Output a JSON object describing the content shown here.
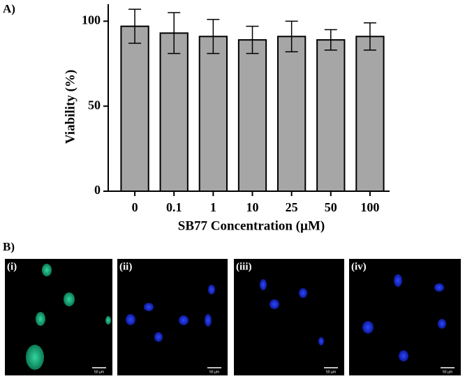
{
  "chart_data": {
    "type": "bar",
    "panel_label": "A)",
    "y_label": "Viability (%)",
    "x_label": "SB77 Concentration (µM)",
    "categories": [
      "0",
      "0.1",
      "1",
      "10",
      "25",
      "50",
      "100"
    ],
    "values": [
      97,
      93,
      91,
      89,
      91,
      89,
      91
    ],
    "errors": [
      10,
      12,
      10,
      8,
      9,
      6,
      8
    ],
    "color": "#a6a6a6",
    "ylim": [
      0,
      110
    ],
    "yticks": [
      0,
      50,
      100
    ]
  },
  "panel_b": {
    "label": "B)",
    "images": [
      {
        "label": "(i)",
        "scale": "50 µm"
      },
      {
        "label": "(ii)",
        "scale": "50 µm"
      },
      {
        "label": "(iii)",
        "scale": "50 µm"
      },
      {
        "label": "(iv)",
        "scale": "50 µm"
      }
    ]
  }
}
